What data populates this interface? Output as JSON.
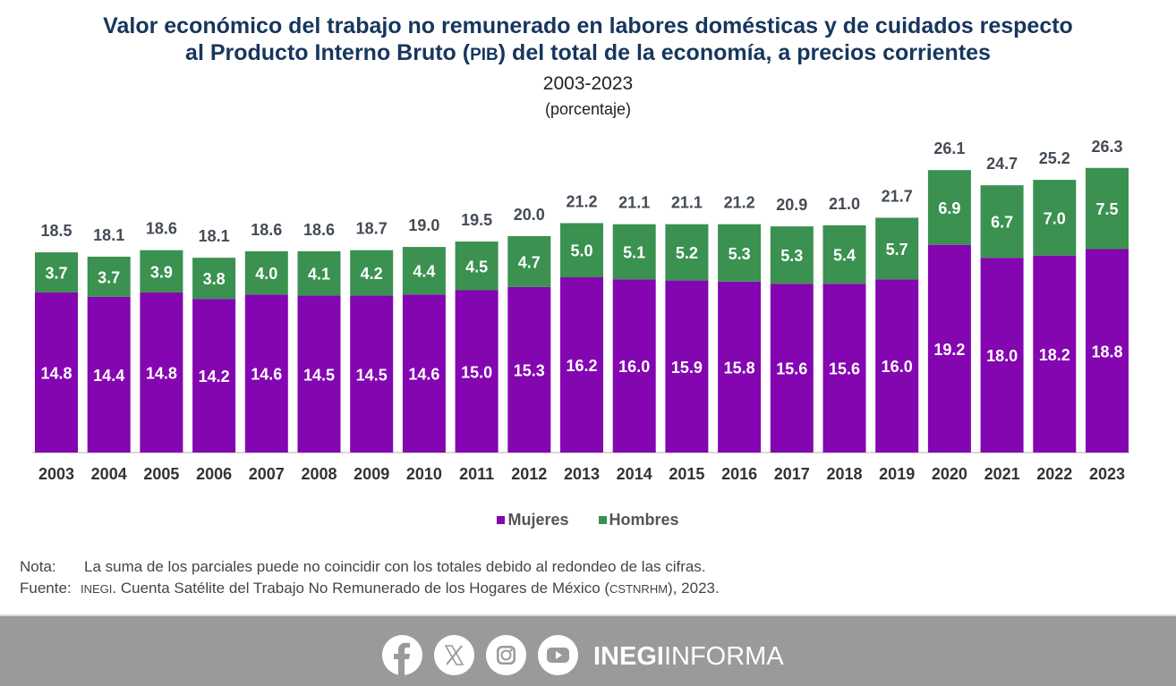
{
  "header": {
    "title_line1": "Valor económico del trabajo no remunerado en labores domésticas y de cuidados respecto",
    "title_line2_pre": "al Producto Interno Bruto (",
    "title_line2_abbr": "PIB",
    "title_line2_post": ") del total de la economía, a precios corrientes",
    "period": "2003-2023",
    "unit": "(porcentaje)"
  },
  "colors": {
    "mujeres": "#8306b0",
    "hombres": "#3a9150",
    "total_label": "#444b55",
    "axis_label": "#333333",
    "title": "#17365d"
  },
  "chart_data": {
    "type": "bar",
    "stacked": true,
    "title": "Valor económico del trabajo no remunerado en labores domésticas y de cuidados respecto al Producto Interno Bruto (PIB) del total de la economía, a precios corrientes",
    "subtitle": "2003-2023 (porcentaje)",
    "xlabel": "",
    "ylabel": "",
    "ylim": [
      0,
      28
    ],
    "grid": false,
    "legend_position": "bottom",
    "categories": [
      "2003",
      "2004",
      "2005",
      "2006",
      "2007",
      "2008",
      "2009",
      "2010",
      "2011",
      "2012",
      "2013",
      "2014",
      "2015",
      "2016",
      "2017",
      "2018",
      "2019",
      "2020",
      "2021",
      "2022",
      "2023"
    ],
    "series": [
      {
        "name": "Mujeres",
        "values": [
          14.8,
          14.4,
          14.8,
          14.2,
          14.6,
          14.5,
          14.5,
          14.6,
          15.0,
          15.3,
          16.2,
          16.0,
          15.9,
          15.8,
          15.6,
          15.6,
          16.0,
          19.2,
          18.0,
          18.2,
          18.8
        ]
      },
      {
        "name": "Hombres",
        "values": [
          3.7,
          3.7,
          3.9,
          3.8,
          4.0,
          4.1,
          4.2,
          4.4,
          4.5,
          4.7,
          5.0,
          5.1,
          5.2,
          5.3,
          5.3,
          5.4,
          5.7,
          6.9,
          6.7,
          7.0,
          7.5
        ]
      }
    ],
    "totals": [
      18.5,
      18.1,
      18.6,
      18.1,
      18.6,
      18.6,
      18.7,
      19.0,
      19.5,
      20.0,
      21.2,
      21.1,
      21.1,
      21.2,
      20.9,
      21.0,
      21.7,
      26.1,
      24.7,
      25.2,
      26.3
    ]
  },
  "legend": {
    "items": [
      {
        "label": "Mujeres"
      },
      {
        "label": "Hombres"
      }
    ]
  },
  "notes": {
    "nota_label": "Nota:",
    "nota_text": "La suma de los parciales puede no coincidir con los totales debido al redondeo de las cifras.",
    "fuente_label": "Fuente:",
    "fuente_org": "INEGI",
    "fuente_text_pre": ". Cuenta Satélite del Trabajo No Remunerado de los Hogares de México (",
    "fuente_abbr": "CSTNRHM",
    "fuente_text_post": "), 2023."
  },
  "footer": {
    "social": [
      {
        "icon": "facebook-icon"
      },
      {
        "icon": "x-twitter-icon"
      },
      {
        "icon": "instagram-icon"
      },
      {
        "icon": "youtube-icon"
      }
    ],
    "brand_bold": "INEGI",
    "brand_light": "INFORMA"
  }
}
